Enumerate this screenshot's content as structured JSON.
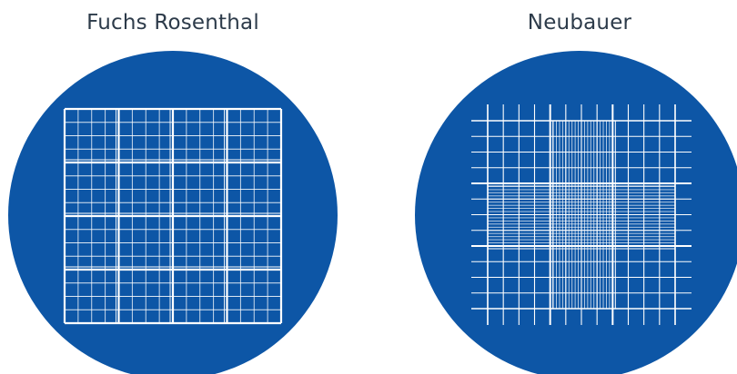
{
  "panels": [
    {
      "title": "Fuchs Rosenthal",
      "grid_type": "4x4 large squares, each subdivided 4x4",
      "colors": {
        "circle": "#0d56a6",
        "lines": "#ffffff"
      }
    },
    {
      "title": "Neubauer",
      "grid_type": "3x3 large squares, central square densely ruled",
      "colors": {
        "circle": "#0d56a6",
        "lines": "#ffffff"
      }
    }
  ]
}
